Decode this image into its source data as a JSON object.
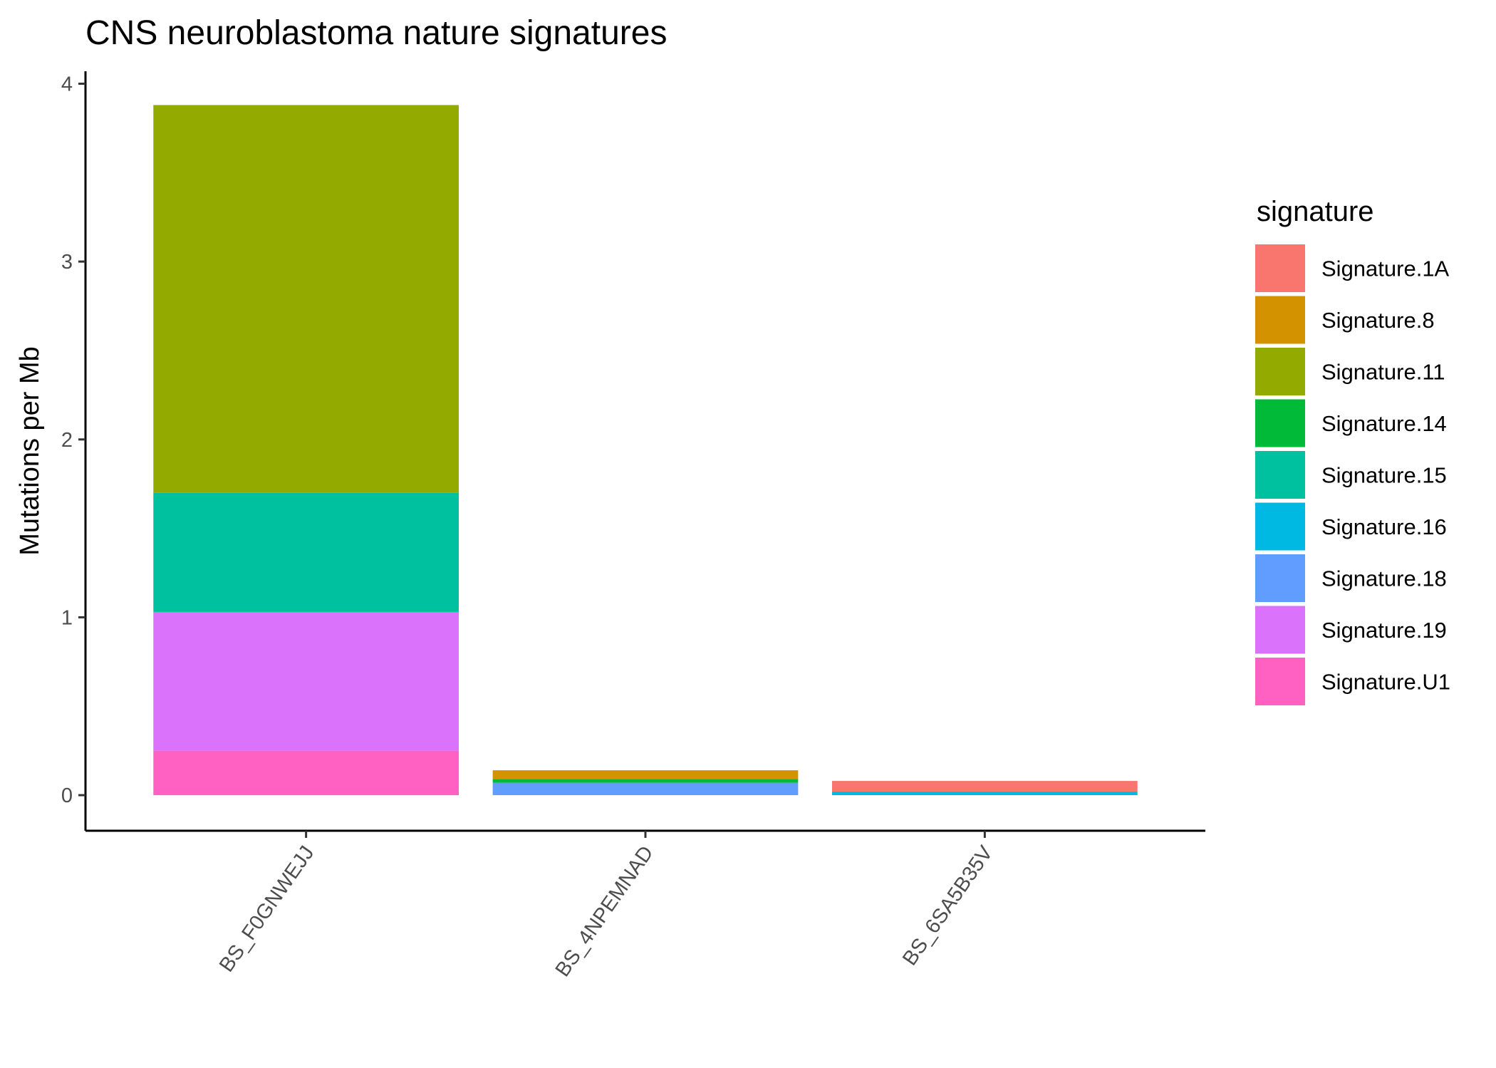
{
  "chart_data": {
    "type": "bar",
    "stacked": true,
    "title": "CNS neuroblastoma nature signatures",
    "xlabel": "",
    "ylabel": "Mutations per Mb",
    "ylim": [
      -0.2,
      4.07
    ],
    "yticks": [
      0,
      1,
      2,
      3,
      4
    ],
    "categories": [
      "BS_F0GNWEJJ",
      "BS_4NPEMNAD",
      "BS_6SA5B35V"
    ],
    "legend_title": "signature",
    "legend_position": "right",
    "grid": false,
    "series": [
      {
        "name": "Signature.1A",
        "color": "#F8766D",
        "values": [
          0,
          0,
          0.06
        ]
      },
      {
        "name": "Signature.8",
        "color": "#D39200",
        "values": [
          0,
          0.05,
          0
        ]
      },
      {
        "name": "Signature.11",
        "color": "#93AA00",
        "values": [
          2.18,
          0,
          0
        ]
      },
      {
        "name": "Signature.14",
        "color": "#00BA38",
        "values": [
          0,
          0.02,
          0
        ]
      },
      {
        "name": "Signature.15",
        "color": "#00C19F",
        "values": [
          0.67,
          0,
          0
        ]
      },
      {
        "name": "Signature.16",
        "color": "#00B9E3",
        "values": [
          0,
          0,
          0.02
        ]
      },
      {
        "name": "Signature.18",
        "color": "#619CFF",
        "values": [
          0,
          0.07,
          0
        ]
      },
      {
        "name": "Signature.19",
        "color": "#DB72FB",
        "values": [
          0.78,
          0,
          0
        ]
      },
      {
        "name": "Signature.U1",
        "color": "#FF61C3",
        "values": [
          0.25,
          0,
          0
        ]
      }
    ]
  }
}
